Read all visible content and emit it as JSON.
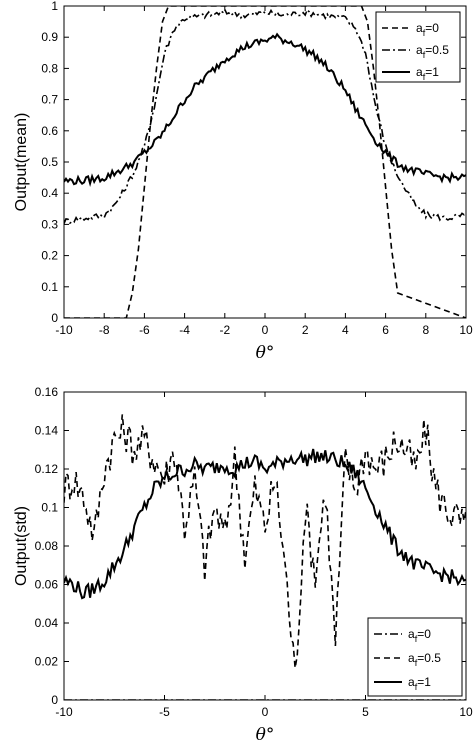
{
  "chart_data": [
    {
      "type": "line",
      "title": "",
      "xlabel": "θ°",
      "ylabel": "Output(mean)",
      "xlim": [
        -10,
        10
      ],
      "ylim": [
        0,
        1
      ],
      "xticks": [
        "-10",
        "-8",
        "-6",
        "-4",
        "-2",
        "0",
        "2",
        "4",
        "6",
        "8",
        "10"
      ],
      "yticks": [
        "0",
        "0.1",
        "0.2",
        "0.3",
        "0.4",
        "0.5",
        "0.6",
        "0.7",
        "0.8",
        "0.9",
        "1"
      ],
      "legend_position": "top-right",
      "grid": false,
      "series": [
        {
          "name": "a_f=0",
          "label_main": "a",
          "label_sub": "f",
          "label_rest": "=0",
          "style": "dashed",
          "x": [
            -10,
            -6.9,
            -6.6,
            -6.3,
            -6.0,
            -5.7,
            -5.4,
            -5.1,
            -4.8,
            4.8,
            5.1,
            5.4,
            5.7,
            6.0,
            6.3,
            6.6,
            10
          ],
          "y": [
            0,
            0,
            0.08,
            0.22,
            0.42,
            0.62,
            0.8,
            0.95,
            1.0,
            1.0,
            0.95,
            0.8,
            0.62,
            0.42,
            0.22,
            0.08,
            0
          ]
        },
        {
          "name": "a_f=0.5",
          "label_main": "a",
          "label_sub": "f",
          "label_rest": "=0.5",
          "style": "dashdot",
          "x": [
            -10,
            -9,
            -8,
            -7.5,
            -7,
            -6.5,
            -6,
            -5.5,
            -5,
            -4.5,
            -4,
            -3,
            -2,
            -1,
            0,
            1,
            2,
            3,
            4,
            4.5,
            5,
            5.5,
            6,
            6.5,
            7,
            7.5,
            8,
            9,
            10
          ],
          "y": [
            0.31,
            0.32,
            0.33,
            0.36,
            0.41,
            0.47,
            0.55,
            0.68,
            0.85,
            0.93,
            0.96,
            0.97,
            0.98,
            0.97,
            0.98,
            0.97,
            0.98,
            0.97,
            0.96,
            0.93,
            0.85,
            0.68,
            0.55,
            0.47,
            0.41,
            0.36,
            0.33,
            0.32,
            0.33
          ]
        },
        {
          "name": "a_f=1",
          "label_main": "a",
          "label_sub": "f",
          "label_rest": "=1",
          "style": "solid",
          "x": [
            -10,
            -9,
            -8,
            -7,
            -6.5,
            -6,
            -5.5,
            -5,
            -4.5,
            -4,
            -3.5,
            -3,
            -2.5,
            -2,
            -1.5,
            -1,
            -0.5,
            0,
            0.5,
            1,
            1.5,
            2,
            2.5,
            3,
            3.5,
            4,
            4.5,
            5,
            5.5,
            6,
            6.5,
            7,
            8,
            9,
            10
          ],
          "y": [
            0.44,
            0.44,
            0.45,
            0.48,
            0.5,
            0.53,
            0.56,
            0.6,
            0.65,
            0.7,
            0.74,
            0.77,
            0.8,
            0.83,
            0.85,
            0.87,
            0.88,
            0.89,
            0.9,
            0.89,
            0.88,
            0.86,
            0.84,
            0.81,
            0.77,
            0.73,
            0.67,
            0.62,
            0.57,
            0.53,
            0.5,
            0.48,
            0.46,
            0.45,
            0.45
          ]
        }
      ]
    },
    {
      "type": "line",
      "title": "",
      "xlabel": "θ°",
      "ylabel": "Output(std)",
      "xlim": [
        -10,
        10
      ],
      "ylim": [
        0,
        0.16
      ],
      "xticks": [
        "-10",
        "-5",
        "0",
        "5",
        "10"
      ],
      "yticks": [
        "0",
        "0.02",
        "0.04",
        "0.06",
        "0.08",
        "0.1",
        "0.12",
        "0.14",
        "0.16"
      ],
      "legend_position": "bottom-right",
      "grid": false,
      "series": [
        {
          "name": "a_f=0",
          "label_main": "a",
          "label_sub": "f",
          "label_rest": "=0",
          "style": "dashdot",
          "x": [
            -10,
            10
          ],
          "y": [
            0,
            0
          ]
        },
        {
          "name": "a_f=0.5",
          "label_main": "a",
          "label_sub": "f",
          "label_rest": "=0.5",
          "style": "dashed",
          "x": [
            -10,
            -9.5,
            -9,
            -8.5,
            -8,
            -7.5,
            -7,
            -6.5,
            -6,
            -5.5,
            -5,
            -4.5,
            -4,
            -3.5,
            -3,
            -2.5,
            -2,
            -1.5,
            -1,
            -0.5,
            0,
            0.5,
            1,
            1.5,
            2,
            2.5,
            3,
            3.5,
            4,
            4.5,
            5,
            5.5,
            6,
            6.5,
            7,
            7.5,
            8,
            8.5,
            9,
            9.5,
            10
          ],
          "y": [
            0.11,
            0.115,
            0.105,
            0.085,
            0.12,
            0.135,
            0.14,
            0.13,
            0.135,
            0.125,
            0.115,
            0.13,
            0.09,
            0.115,
            0.07,
            0.1,
            0.085,
            0.125,
            0.075,
            0.11,
            0.09,
            0.115,
            0.07,
            0.012,
            0.1,
            0.065,
            0.11,
            0.03,
            0.125,
            0.11,
            0.13,
            0.12,
            0.125,
            0.135,
            0.13,
            0.12,
            0.14,
            0.11,
            0.1,
            0.095,
            0.09
          ]
        },
        {
          "name": "a_f=1",
          "label_main": "a",
          "label_sub": "f",
          "label_rest": "=1",
          "style": "solid",
          "x": [
            -10,
            -9.5,
            -9,
            -8.5,
            -8,
            -7.5,
            -7,
            -6.5,
            -6,
            -5.5,
            -5,
            -4.5,
            -4,
            -3.5,
            -3,
            -2.5,
            -2,
            -1.5,
            -1,
            -0.5,
            0,
            0.5,
            1,
            1.5,
            2,
            2.5,
            3,
            3.5,
            4,
            4.5,
            5,
            5.5,
            6,
            6.5,
            7,
            7.5,
            8,
            8.5,
            9,
            9.5,
            10
          ],
          "y": [
            0.062,
            0.06,
            0.055,
            0.058,
            0.062,
            0.07,
            0.078,
            0.09,
            0.1,
            0.11,
            0.115,
            0.118,
            0.12,
            0.122,
            0.12,
            0.121,
            0.122,
            0.12,
            0.123,
            0.124,
            0.12,
            0.122,
            0.125,
            0.126,
            0.125,
            0.127,
            0.126,
            0.125,
            0.122,
            0.118,
            0.11,
            0.1,
            0.09,
            0.08,
            0.075,
            0.07,
            0.068,
            0.066,
            0.065,
            0.063,
            0.06
          ]
        }
      ]
    }
  ]
}
